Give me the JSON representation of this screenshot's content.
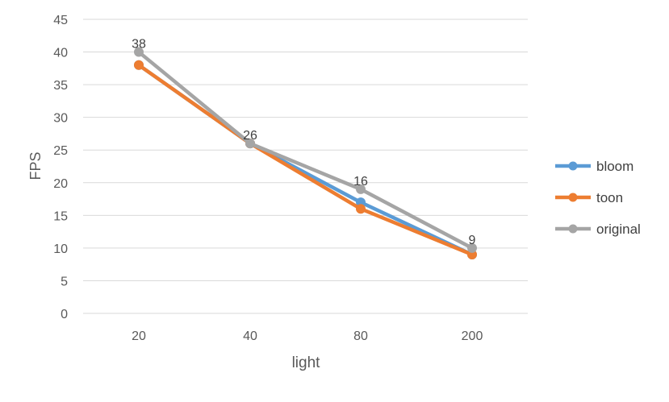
{
  "chart_data": {
    "type": "line",
    "title": "",
    "xlabel": "light",
    "ylabel": "FPS",
    "categories": [
      "20",
      "40",
      "80",
      "200"
    ],
    "ylim": [
      0,
      45
    ],
    "yticks": [
      0,
      5,
      10,
      15,
      20,
      25,
      30,
      35,
      40,
      45
    ],
    "grid": true,
    "legend_position": "right",
    "series": [
      {
        "name": "bloom",
        "color": "#5b9bd5",
        "values": [
          38,
          26,
          17,
          9
        ]
      },
      {
        "name": "toon",
        "color": "#ed7d31",
        "values": [
          38,
          26,
          16,
          9
        ]
      },
      {
        "name": "original",
        "color": "#a5a5a5",
        "values": [
          40,
          26,
          19,
          10
        ]
      }
    ],
    "data_labels": [
      "38",
      "26",
      "16",
      "9"
    ]
  }
}
